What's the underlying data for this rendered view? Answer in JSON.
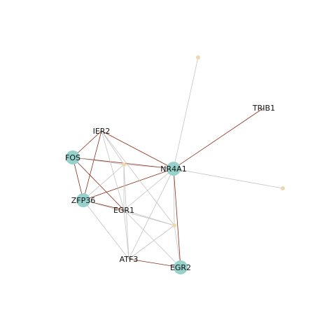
{
  "colors": {
    "hub_node": "#97d1cc",
    "minor_node": "#ecd9ad",
    "strong_edge": "#8b2c17",
    "weak_edge": "#c4c4c4"
  },
  "nodes": [
    {
      "id": "FOS",
      "label": "FOS",
      "kind": "hub"
    },
    {
      "id": "ZFP36",
      "label": "ZFP36",
      "kind": "hub"
    },
    {
      "id": "NR4A1",
      "label": "NR4A1",
      "kind": "hub"
    },
    {
      "id": "EGR2",
      "label": "EGR2",
      "kind": "hub"
    },
    {
      "id": "IER2",
      "label": "IER2",
      "kind": "label-only"
    },
    {
      "id": "EGR1",
      "label": "EGR1",
      "kind": "label-only"
    },
    {
      "id": "ATF3",
      "label": "ATF3",
      "kind": "label-only"
    },
    {
      "id": "TRIB1",
      "label": "TRIB1",
      "kind": "label-only"
    },
    {
      "id": "u1",
      "label": "",
      "kind": "minor"
    },
    {
      "id": "u2",
      "label": "",
      "kind": "minor"
    },
    {
      "id": "u3",
      "label": "",
      "kind": "minor"
    },
    {
      "id": "u4",
      "label": "",
      "kind": "minor"
    }
  ],
  "edges": [
    {
      "source": "NR4A1",
      "target": "TRIB1",
      "type": "strong"
    },
    {
      "source": "NR4A1",
      "target": "FOS",
      "type": "strong"
    },
    {
      "source": "NR4A1",
      "target": "IER2",
      "type": "strong"
    },
    {
      "source": "NR4A1",
      "target": "ZFP36",
      "type": "strong"
    },
    {
      "source": "NR4A1",
      "target": "EGR2",
      "type": "strong"
    },
    {
      "source": "FOS",
      "target": "IER2",
      "type": "strong"
    },
    {
      "source": "FOS",
      "target": "ZFP36",
      "type": "strong"
    },
    {
      "source": "FOS",
      "target": "EGR1",
      "type": "strong"
    },
    {
      "source": "IER2",
      "target": "ZFP36",
      "type": "strong"
    },
    {
      "source": "ZFP36",
      "target": "EGR1",
      "type": "strong"
    },
    {
      "source": "ATF3",
      "target": "EGR2",
      "type": "strong"
    },
    {
      "source": "NR4A1",
      "target": "u1",
      "type": "weak"
    },
    {
      "source": "NR4A1",
      "target": "u2",
      "type": "weak"
    },
    {
      "source": "NR4A1",
      "target": "u3",
      "type": "weak"
    },
    {
      "source": "NR4A1",
      "target": "u4",
      "type": "weak"
    },
    {
      "source": "NR4A1",
      "target": "EGR1",
      "type": "weak"
    },
    {
      "source": "NR4A1",
      "target": "ATF3",
      "type": "weak"
    },
    {
      "source": "FOS",
      "target": "u3",
      "type": "weak"
    },
    {
      "source": "IER2",
      "target": "u3",
      "type": "weak"
    },
    {
      "source": "IER2",
      "target": "EGR1",
      "type": "weak"
    },
    {
      "source": "IER2",
      "target": "u4",
      "type": "weak"
    },
    {
      "source": "ZFP36",
      "target": "u3",
      "type": "weak"
    },
    {
      "source": "ZFP36",
      "target": "ATF3",
      "type": "weak"
    },
    {
      "source": "ZFP36",
      "target": "u4",
      "type": "weak"
    },
    {
      "source": "u3",
      "target": "EGR1",
      "type": "weak"
    },
    {
      "source": "u3",
      "target": "ATF3",
      "type": "weak"
    },
    {
      "source": "EGR1",
      "target": "ATF3",
      "type": "weak"
    },
    {
      "source": "EGR1",
      "target": "EGR2",
      "type": "weak"
    },
    {
      "source": "EGR1",
      "target": "u4",
      "type": "weak"
    },
    {
      "source": "u4",
      "target": "ATF3",
      "type": "weak"
    },
    {
      "source": "u4",
      "target": "EGR2",
      "type": "weak"
    }
  ]
}
